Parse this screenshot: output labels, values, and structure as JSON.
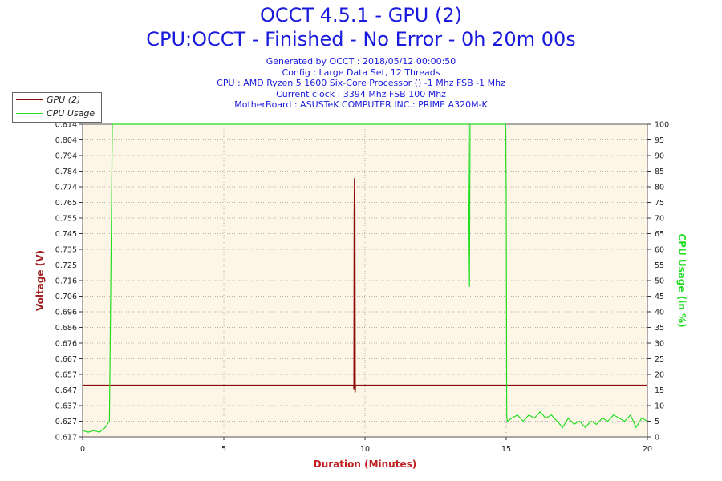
{
  "header": {
    "title": "OCCT 4.5.1 - GPU (2)",
    "subtitle": "CPU:OCCT - Finished - No Error - 0h 20m 00s",
    "info_lines": [
      "Generated by OCCT : 2018/05/12 00:00:50",
      "Config : Large Data Set, 12 Threads",
      "CPU : AMD Ryzen 5 1600 Six-Core Processor () -1 Mhz FSB -1 Mhz",
      "Current clock : 3394 Mhz FSB 100 Mhz",
      "MotherBoard : ASUSTeK COMPUTER INC.: PRIME A320M-K"
    ]
  },
  "legend": {
    "gpu_label": "GPU (2)",
    "cpu_label": "CPU Usage"
  },
  "colors": {
    "gpu": "#8b0a0a",
    "cpu": "#22dd22",
    "plot_bg": "#fdf5e6",
    "title": "#1a1adc",
    "axis_label_left": "#a02020",
    "axis_label_right": "#22dd22",
    "xlabel": "#c02020"
  },
  "chart_data": {
    "type": "line",
    "xlabel": "Duration (Minutes)",
    "ylabel": "Voltage (V)",
    "y2label": "CPU Usage (in %)",
    "xlim": [
      0,
      20
    ],
    "xticks": [
      "0",
      "5",
      "10",
      "15",
      "20"
    ],
    "ylim": [
      0.617,
      0.814
    ],
    "yticks": [
      "0.617",
      "0.627",
      "0.637",
      "0.647",
      "0.657",
      "0.667",
      "0.676",
      "0.686",
      "0.696",
      "0.706",
      "0.716",
      "0.725",
      "0.735",
      "0.745",
      "0.755",
      "0.765",
      "0.774",
      "0.784",
      "0.794",
      "0.804",
      "0.814"
    ],
    "y2lim": [
      0,
      100
    ],
    "y2ticks": [
      "0",
      "5",
      "10",
      "15",
      "20",
      "25",
      "30",
      "35",
      "40",
      "45",
      "50",
      "55",
      "60",
      "65",
      "70",
      "75",
      "80",
      "85",
      "90",
      "95",
      "100"
    ],
    "grid": true,
    "legend_position": "top-left",
    "series": [
      {
        "name": "GPU (2)",
        "axis": "left",
        "x": [
          0,
          9.6,
          9.61,
          9.62,
          9.63,
          9.64,
          9.65,
          9.66,
          9.68,
          9.7,
          20
        ],
        "y": [
          0.6495,
          0.6495,
          0.647,
          0.758,
          0.78,
          0.76,
          0.645,
          0.6495,
          0.6495,
          0.6495,
          0.6495
        ]
      },
      {
        "name": "CPU Usage",
        "axis": "right",
        "x": [
          0,
          0.2,
          0.4,
          0.6,
          0.8,
          0.95,
          1.0,
          1.05,
          1.1,
          1.2,
          13.65,
          13.68,
          13.7,
          13.72,
          13.75,
          13.8,
          14.98,
          15.0,
          15.02,
          15.05,
          15.2,
          15.4,
          15.6,
          15.8,
          16.0,
          16.2,
          16.4,
          16.6,
          16.8,
          17.0,
          17.2,
          17.4,
          17.6,
          17.8,
          18.0,
          18.2,
          18.4,
          18.6,
          18.8,
          19.0,
          19.2,
          19.4,
          19.6,
          19.8,
          20.0
        ],
        "y": [
          2,
          1.5,
          2,
          1.5,
          3,
          5,
          52,
          100,
          100,
          100,
          100,
          70,
          48,
          100,
          100,
          100,
          100,
          78,
          6,
          5,
          6,
          7,
          5,
          7,
          6,
          8,
          6,
          7,
          5,
          3,
          6,
          4,
          5,
          3,
          5,
          4,
          6,
          5,
          7,
          6,
          5,
          7,
          3,
          6,
          5
        ]
      }
    ]
  }
}
